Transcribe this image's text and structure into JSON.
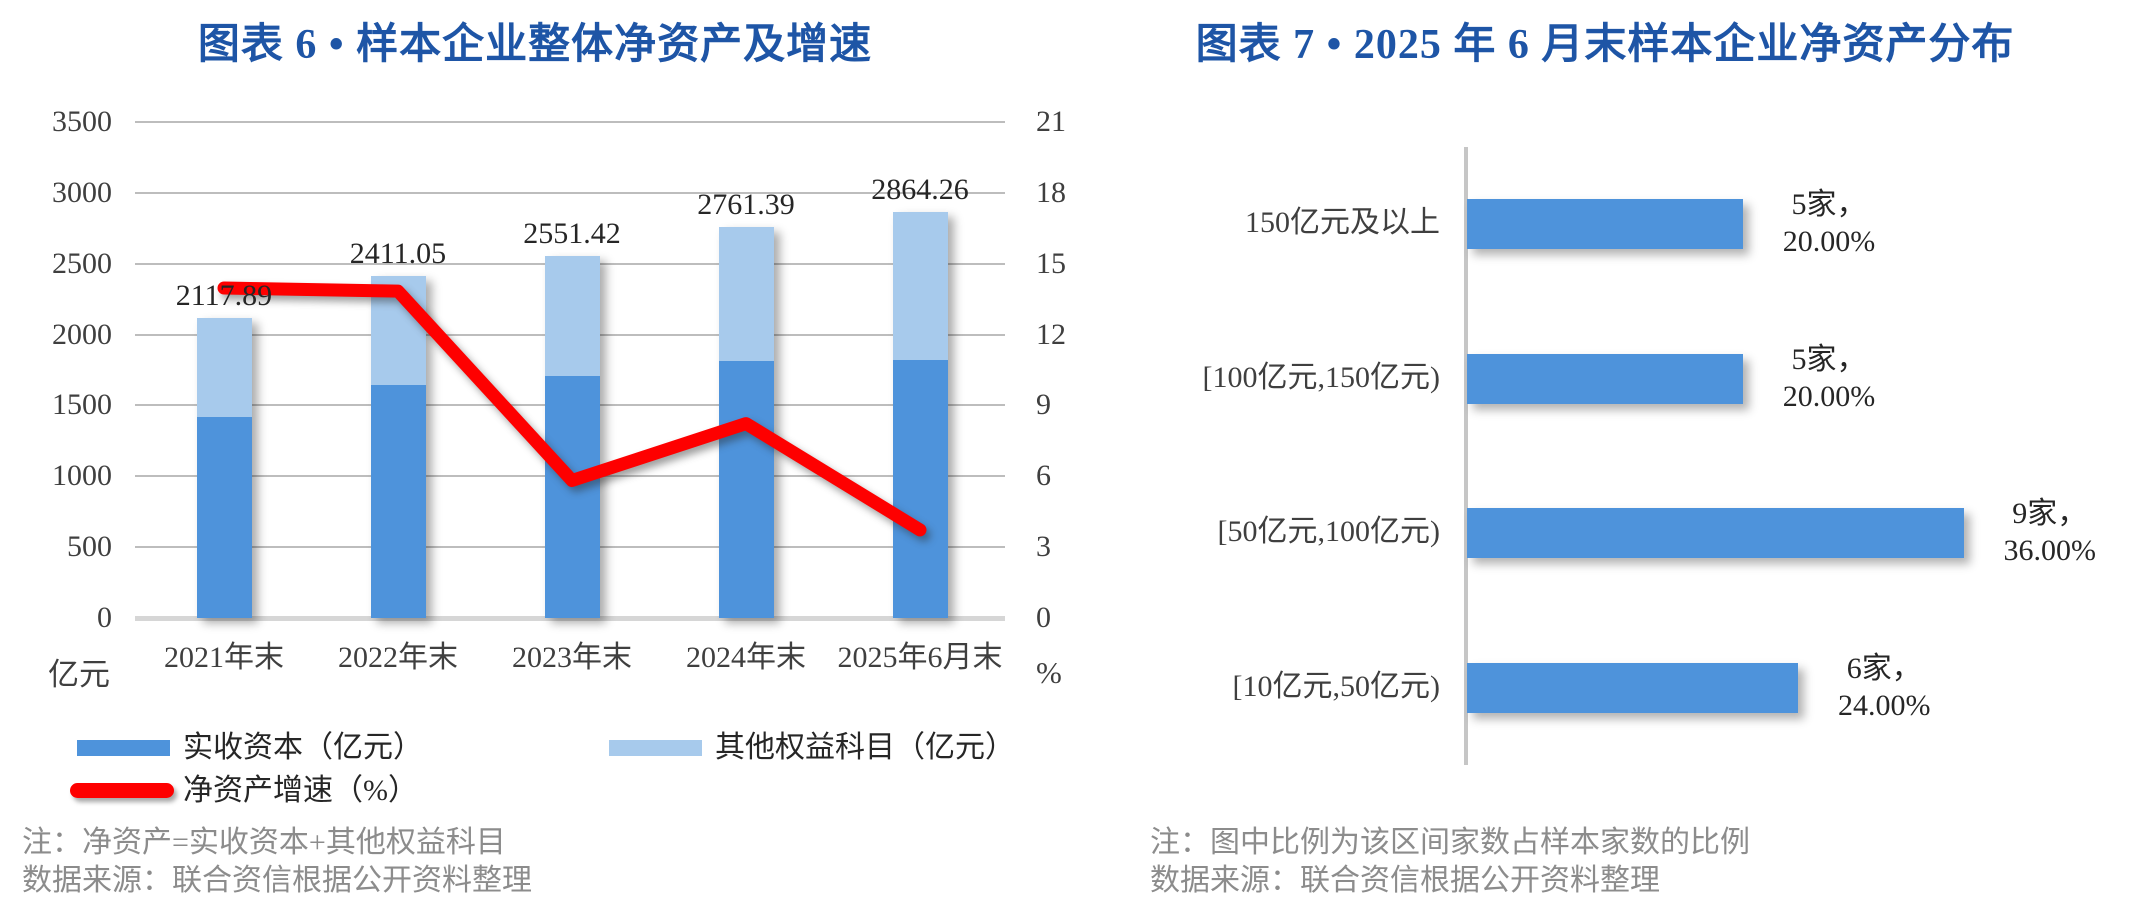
{
  "page": {
    "background": "#FFFFFF"
  },
  "colors": {
    "title_blue": "#1E55A6",
    "bar_primary": "#4E93DB",
    "bar_secondary": "#A7CAEC",
    "line_red": "#FE0000",
    "axis_text": "#3F3F3F",
    "data_label_text": "#262626",
    "note_text": "#8C8C8C",
    "gridline": "#BDBDBD",
    "axis_line": "#D6D6D6",
    "vertical_axis_line": "#C6C6C6"
  },
  "chart_data": [
    {
      "type": "bar",
      "subtype": "stacked-columns-with-line",
      "title": "图表 6 •  样本企业整体净资产及增速",
      "categories": [
        "2021年末",
        "2022年末",
        "2023年末",
        "2024年末",
        "2025年6月末"
      ],
      "series": [
        {
          "name": "实收资本（亿元）",
          "type": "bar",
          "stack": "net-assets",
          "color_key": "bar_primary",
          "values": [
            1415,
            1645,
            1705,
            1815,
            1820
          ]
        },
        {
          "name": "其他权益科目（亿元）",
          "type": "bar",
          "stack": "net-assets",
          "color_key": "bar_secondary",
          "values": [
            702.89,
            766.05,
            846.42,
            946.39,
            1044.26
          ]
        },
        {
          "name": "净资产增速（%）",
          "type": "line",
          "axis": "right",
          "color_key": "line_red",
          "values": [
            13.97,
            13.84,
            5.82,
            8.23,
            3.73
          ]
        }
      ],
      "total_labels": [
        "2117.89",
        "2411.05",
        "2551.42",
        "2761.39",
        "2864.26"
      ],
      "left_axis": {
        "unit": "亿元",
        "min": 0,
        "max": 3500,
        "ticks": [
          3500,
          3000,
          2500,
          2000,
          1500,
          1000,
          500,
          0
        ]
      },
      "right_axis": {
        "unit": "%",
        "min": 0,
        "max": 21,
        "ticks": [
          21,
          18,
          15,
          12,
          9,
          6,
          3,
          0
        ]
      },
      "grid": true,
      "legend_position": "bottom",
      "note": "注：净资产=实收资本+其他权益科目",
      "source": "数据来源：联合资信根据公开资料整理"
    },
    {
      "type": "bar",
      "subtype": "horizontal",
      "title": "图表 7 • 2025 年 6 月末样本企业净资产分布",
      "categories": [
        "150亿元及以上",
        "[100亿元,150亿元)",
        "[50亿元,100亿元)",
        "[10亿元,50亿元)"
      ],
      "values": [
        5,
        5,
        9,
        6
      ],
      "value_labels": [
        [
          "5家，",
          "20.00%"
        ],
        [
          "5家，",
          "20.00%"
        ],
        [
          "9家，",
          "36.00%"
        ],
        [
          "6家，",
          "24.00%"
        ]
      ],
      "xmax": 10,
      "grid": false,
      "note": "注：图中比例为该区间家数占样本家数的比例",
      "source": "数据来源：联合资信根据公开资料整理"
    }
  ]
}
